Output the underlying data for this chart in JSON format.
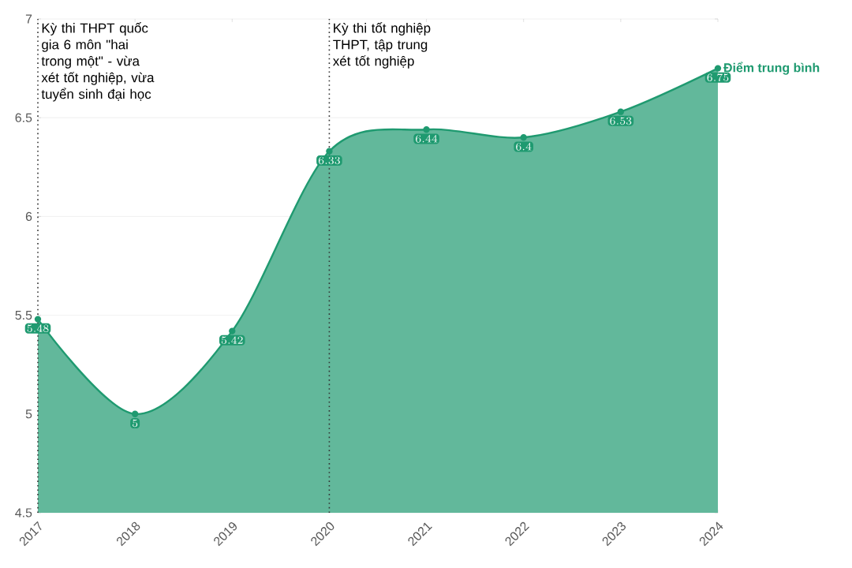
{
  "chart_data": {
    "type": "area",
    "x": [
      2017,
      2018,
      2019,
      2020,
      2021,
      2022,
      2023,
      2024
    ],
    "series": [
      {
        "name": "Điểm trung bình",
        "color": "#1f9a70",
        "values": [
          5.48,
          5,
          5.42,
          6.33,
          6.44,
          6.4,
          6.53,
          6.75
        ]
      }
    ],
    "xlim": [
      2017,
      2024
    ],
    "xticks": [
      2017,
      2018,
      2019,
      2020,
      2021,
      2022,
      2023,
      2024
    ],
    "ylim": [
      4.5,
      7
    ],
    "yticks": [
      4.5,
      5,
      5.5,
      6,
      6.5,
      7
    ],
    "grid": "y",
    "marker": "circle",
    "data_labels": true,
    "ref_lines": [
      {
        "axis": "x",
        "value": 2017,
        "label": "Kỳ thi THPT quốc gia 6 môn \"hai trong một\" - vừa xét tốt nghiệp, vừa tuyển sinh đại học",
        "line_style": "dotted"
      },
      {
        "axis": "x",
        "value": 2020,
        "label": "Kỳ thi tốt nghiệp THPT, tập trung xét tốt nghiệp",
        "line_style": "dotted"
      }
    ]
  }
}
